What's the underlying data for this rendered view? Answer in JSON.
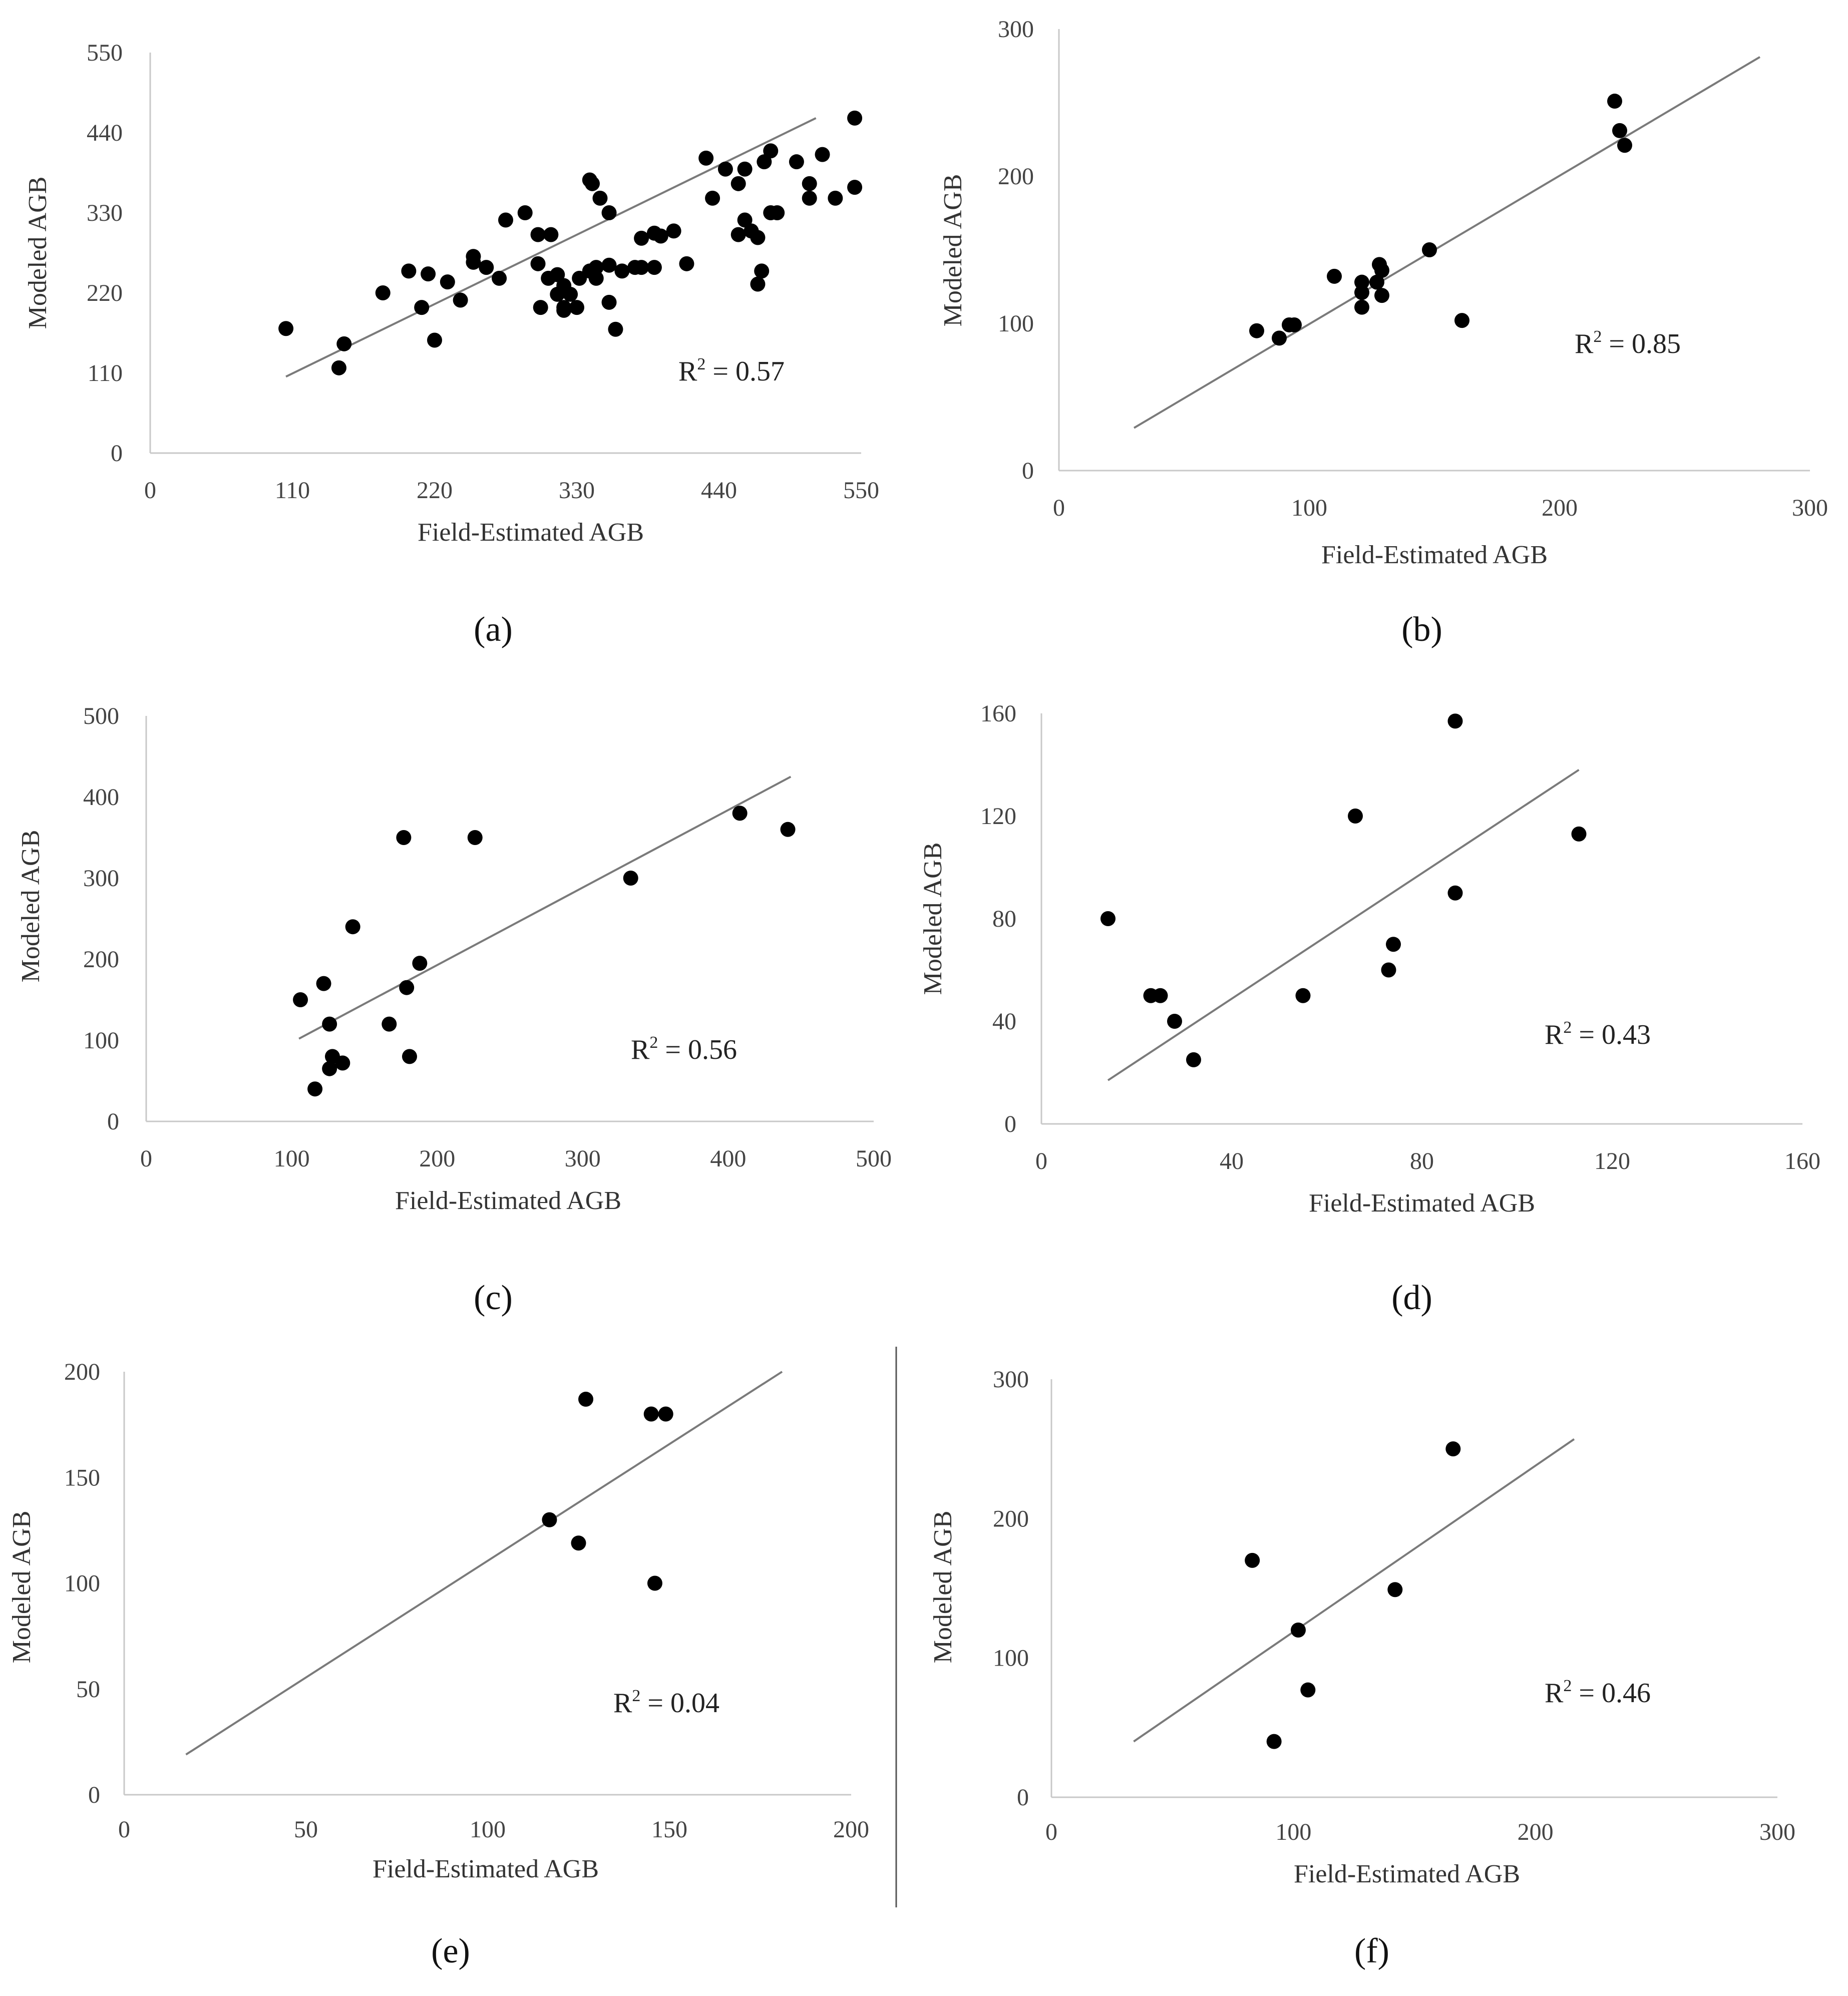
{
  "chart_data": [
    {
      "type": "scatter",
      "panel_label": "(a)",
      "xlabel": "Field-Estimated AGB",
      "ylabel": "Modeled AGB",
      "xlim": [
        0,
        550
      ],
      "ylim": [
        0,
        550
      ],
      "xticks": [
        0,
        110,
        220,
        330,
        440,
        550
      ],
      "yticks": [
        0,
        110,
        220,
        330,
        440,
        550
      ],
      "r2": "R2 = 0.57",
      "r2_base": "R",
      "r2_sup": "2",
      "r2_rest": " = 0.57",
      "fit_line": [
        [
          105,
          105
        ],
        [
          515,
          460
        ]
      ],
      "points": [
        [
          105,
          171
        ],
        [
          146,
          117
        ],
        [
          150,
          150
        ],
        [
          180,
          220
        ],
        [
          210,
          200
        ],
        [
          220,
          155
        ],
        [
          230,
          235
        ],
        [
          250,
          262
        ],
        [
          260,
          255
        ],
        [
          270,
          240
        ],
        [
          290,
          330
        ],
        [
          315,
          245
        ],
        [
          345,
          255
        ],
        [
          355,
          207
        ],
        [
          360,
          170
        ],
        [
          380,
          255
        ],
        [
          325,
          218
        ],
        [
          332,
          240
        ],
        [
          345,
          240
        ],
        [
          320,
          230
        ],
        [
          302,
          200
        ],
        [
          308,
          240
        ],
        [
          315,
          218
        ],
        [
          320,
          200
        ],
        [
          320,
          196
        ],
        [
          330,
          200
        ],
        [
          340,
          250
        ],
        [
          355,
          258
        ],
        [
          365,
          250
        ],
        [
          375,
          255
        ],
        [
          380,
          295
        ],
        [
          390,
          302
        ],
        [
          390,
          255
        ],
        [
          395,
          298
        ],
        [
          405,
          305
        ],
        [
          415,
          260
        ],
        [
          430,
          405
        ],
        [
          435,
          350
        ],
        [
          455,
          300
        ],
        [
          460,
          320
        ],
        [
          465,
          305
        ],
        [
          470,
          296
        ],
        [
          470,
          232
        ],
        [
          473,
          250
        ],
        [
          475,
          400
        ],
        [
          480,
          330
        ],
        [
          485,
          330
        ],
        [
          445,
          390
        ],
        [
          455,
          370
        ],
        [
          460,
          390
        ],
        [
          480,
          415
        ],
        [
          500,
          400
        ],
        [
          510,
          350
        ],
        [
          510,
          370
        ],
        [
          520,
          410
        ],
        [
          530,
          350
        ],
        [
          545,
          460
        ],
        [
          545,
          365
        ],
        [
          275,
          320
        ],
        [
          250,
          270
        ],
        [
          240,
          210
        ],
        [
          340,
          375
        ],
        [
          342,
          370
        ],
        [
          348,
          350
        ],
        [
          355,
          330
        ],
        [
          300,
          260
        ],
        [
          300,
          300
        ],
        [
          310,
          300
        ],
        [
          200,
          250
        ],
        [
          215,
          246
        ]
      ]
    },
    {
      "type": "scatter",
      "panel_label": "(b)",
      "xlabel": "Field-Estimated AGB",
      "ylabel": "Modeled AGB",
      "xlim": [
        0,
        300
      ],
      "ylim": [
        0,
        300
      ],
      "xticks": [
        0,
        100,
        200,
        300
      ],
      "yticks": [
        0,
        100,
        200,
        300
      ],
      "r2": "R2 = 0.85",
      "r2_base": "R",
      "r2_sup": "2",
      "r2_rest": " = 0.85",
      "fit_line": [
        [
          30,
          29
        ],
        [
          280,
          281
        ]
      ],
      "points": [
        [
          79,
          95
        ],
        [
          88,
          90
        ],
        [
          92,
          99
        ],
        [
          94,
          99
        ],
        [
          110,
          132
        ],
        [
          121,
          128
        ],
        [
          121,
          121
        ],
        [
          121,
          111
        ],
        [
          127,
          128
        ],
        [
          128,
          140
        ],
        [
          129,
          136
        ],
        [
          129,
          119
        ],
        [
          148,
          150
        ],
        [
          161,
          102
        ],
        [
          222,
          251
        ],
        [
          224,
          231
        ],
        [
          226,
          221
        ]
      ]
    },
    {
      "type": "scatter",
      "panel_label": "(c)",
      "xlabel": "Field-Estimated AGB",
      "ylabel": "Modeled AGB",
      "xlim": [
        0,
        500
      ],
      "ylim": [
        0,
        500
      ],
      "xticks": [
        0,
        100,
        200,
        300,
        400,
        500
      ],
      "yticks": [
        0,
        100,
        200,
        300,
        400,
        500
      ],
      "r2": "R2 = 0.56",
      "r2_base": "R",
      "r2_sup": "2",
      "r2_rest": " = 0.56",
      "fit_line": [
        [
          105,
          102
        ],
        [
          443,
          425
        ]
      ],
      "points": [
        [
          106,
          150
        ],
        [
          116,
          40
        ],
        [
          122,
          170
        ],
        [
          126,
          65
        ],
        [
          126,
          120
        ],
        [
          128,
          80
        ],
        [
          135,
          72
        ],
        [
          142,
          240
        ],
        [
          167,
          120
        ],
        [
          177,
          350
        ],
        [
          179,
          165
        ],
        [
          181,
          80
        ],
        [
          188,
          195
        ],
        [
          226,
          350
        ],
        [
          333,
          300
        ],
        [
          408,
          380
        ],
        [
          441,
          360
        ]
      ]
    },
    {
      "type": "scatter",
      "panel_label": "(d)",
      "xlabel": "Field-Estimated AGB",
      "ylabel": "Modeled AGB",
      "xlim": [
        0,
        160
      ],
      "ylim": [
        0,
        160
      ],
      "xticks": [
        0,
        40,
        80,
        120,
        160
      ],
      "yticks": [
        0,
        40,
        80,
        120,
        160
      ],
      "r2": "R2 = 0.43",
      "r2_base": "R",
      "r2_sup": "2",
      "r2_rest": " = 0.43",
      "fit_line": [
        [
          14,
          17
        ],
        [
          113,
          138
        ]
      ],
      "points": [
        [
          14,
          80
        ],
        [
          23,
          50
        ],
        [
          25,
          50
        ],
        [
          28,
          40
        ],
        [
          32,
          25
        ],
        [
          55,
          50
        ],
        [
          66,
          120
        ],
        [
          73,
          60
        ],
        [
          74,
          70
        ],
        [
          87,
          157
        ],
        [
          87,
          90
        ],
        [
          113,
          113
        ]
      ]
    },
    {
      "type": "scatter",
      "panel_label": "(e)",
      "xlabel": "Field-Estimated AGB",
      "ylabel": "Modeled AGB",
      "xlim": [
        0,
        200
      ],
      "ylim": [
        0,
        200
      ],
      "xticks": [
        0,
        50,
        100,
        150,
        200
      ],
      "yticks": [
        0,
        50,
        100,
        150,
        200
      ],
      "r2": "R2 = 0.04",
      "r2_base": "R",
      "r2_sup": "2",
      "r2_rest": " = 0.04",
      "fit_line": [
        [
          17,
          19
        ],
        [
          181,
          200
        ]
      ],
      "points": [
        [
          117,
          130
        ],
        [
          125,
          119
        ],
        [
          127,
          187
        ],
        [
          145,
          180
        ],
        [
          146,
          100
        ],
        [
          149,
          180
        ]
      ]
    },
    {
      "type": "scatter",
      "panel_label": "(f)",
      "xlabel": "Field-Estimated AGB",
      "ylabel": "Modeled AGB",
      "xlim": [
        0,
        300
      ],
      "ylim": [
        0,
        300
      ],
      "xticks": [
        0,
        100,
        200,
        300
      ],
      "yticks": [
        0,
        100,
        200,
        300
      ],
      "r2": "R2 = 0.46",
      "r2_base": "R",
      "r2_sup": "2",
      "r2_rest": " = 0.46",
      "fit_line": [
        [
          34,
          40
        ],
        [
          216,
          257
        ]
      ],
      "points": [
        [
          83,
          170
        ],
        [
          92,
          40
        ],
        [
          102,
          120
        ],
        [
          106,
          77
        ],
        [
          142,
          149
        ],
        [
          166,
          250
        ]
      ]
    }
  ]
}
